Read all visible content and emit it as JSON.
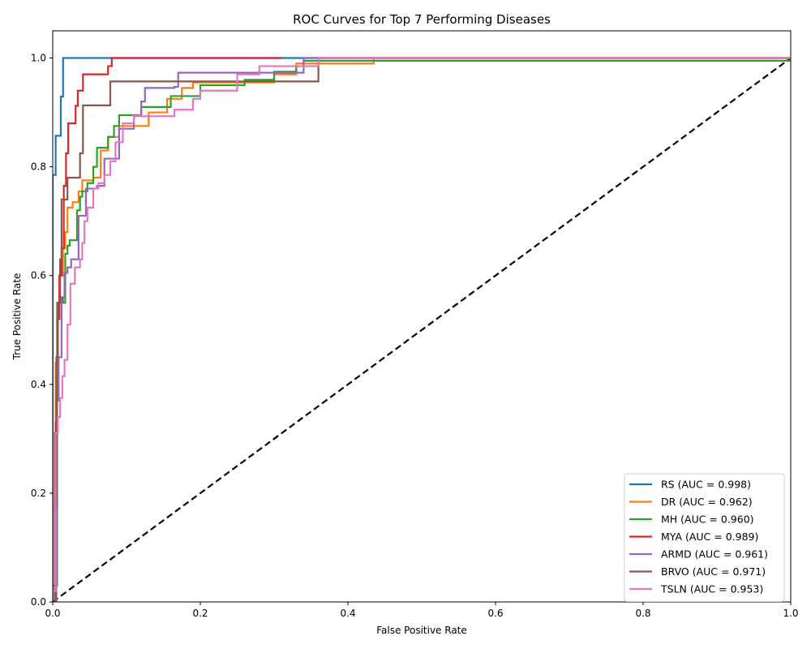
{
  "chart_data": {
    "type": "line",
    "title": "ROC Curves for Top 7 Performing Diseases",
    "xlabel": "False Positive Rate",
    "ylabel": "True Positive Rate",
    "xlim": [
      0,
      1
    ],
    "ylim": [
      0,
      1.05
    ],
    "xticks": [
      "0.0",
      "0.2",
      "0.4",
      "0.6",
      "0.8",
      "1.0"
    ],
    "yticks": [
      "0.0",
      "0.2",
      "0.4",
      "0.6",
      "0.8",
      "1.0"
    ],
    "grid": false,
    "legend_position": "lower-right",
    "baseline": {
      "x": [
        0,
        1
      ],
      "y": [
        0,
        1
      ],
      "color": "#000000",
      "style": "dashed"
    },
    "series": [
      {
        "name": "RS (AUC = 0.998)",
        "color": "#1f77b4",
        "x": [
          0,
          0,
          0.004,
          0.004,
          0.011,
          0.011,
          0.014,
          0.014,
          1
        ],
        "y": [
          0,
          0.785,
          0.785,
          0.857,
          0.857,
          0.929,
          0.929,
          1.0,
          1.0
        ]
      },
      {
        "name": "DR (AUC = 0.962)",
        "color": "#ff7f0e",
        "x": [
          0,
          0.004,
          0.006,
          0.009,
          0.014,
          0.017,
          0.02,
          0.027,
          0.035,
          0.04,
          0.055,
          0.065,
          0.075,
          0.09,
          0.13,
          0.155,
          0.175,
          0.19,
          0.26,
          0.3,
          0.33,
          0.435,
          0.435,
          1
        ],
        "y": [
          0,
          0.44,
          0.52,
          0.6,
          0.65,
          0.68,
          0.725,
          0.735,
          0.755,
          0.775,
          0.78,
          0.83,
          0.855,
          0.875,
          0.9,
          0.925,
          0.945,
          0.955,
          0.955,
          0.97,
          0.99,
          0.99,
          1.0,
          1.0
        ]
      },
      {
        "name": "MH (AUC = 0.960)",
        "color": "#2ca02c",
        "x": [
          0,
          0.006,
          0.009,
          0.014,
          0.017,
          0.02,
          0.023,
          0.033,
          0.037,
          0.04,
          0.047,
          0.055,
          0.06,
          0.075,
          0.083,
          0.09,
          0.12,
          0.16,
          0.2,
          0.26,
          0.3,
          0.33,
          0.34,
          1
        ],
        "y": [
          0.03,
          0.55,
          0.56,
          0.55,
          0.64,
          0.655,
          0.665,
          0.72,
          0.745,
          0.755,
          0.77,
          0.8,
          0.835,
          0.855,
          0.875,
          0.895,
          0.91,
          0.93,
          0.95,
          0.96,
          0.975,
          0.985,
          0.995,
          1.0
        ]
      },
      {
        "name": "MYA (AUC = 0.989)",
        "color": "#d62728",
        "x": [
          0,
          0.003,
          0.004,
          0.005,
          0.007,
          0.009,
          0.012,
          0.015,
          0.018,
          0.021,
          0.031,
          0.034,
          0.041,
          0.048,
          0.075,
          0.08,
          0.31
        ],
        "y": [
          0,
          0.31,
          0.33,
          0.44,
          0.52,
          0.6,
          0.65,
          0.765,
          0.825,
          0.88,
          0.912,
          0.94,
          0.97,
          0.97,
          0.985,
          1.0,
          1.0
        ]
      },
      {
        "name": "ARMD (AUC = 0.961)",
        "color": "#9467bd",
        "x": [
          0,
          0.005,
          0.008,
          0.012,
          0.016,
          0.02,
          0.025,
          0.035,
          0.045,
          0.06,
          0.07,
          0.09,
          0.11,
          0.12,
          0.125,
          0.165,
          0.17,
          0.29,
          0.33,
          0.34,
          1
        ],
        "y": [
          0,
          0.37,
          0.45,
          0.56,
          0.605,
          0.615,
          0.63,
          0.71,
          0.76,
          0.765,
          0.815,
          0.87,
          0.895,
          0.92,
          0.945,
          0.947,
          0.973,
          0.973,
          0.973,
          1.0,
          1.0
        ]
      },
      {
        "name": "BRVO (AUC = 0.971)",
        "color": "#8c564b",
        "x": [
          0,
          0.004,
          0.005,
          0.007,
          0.01,
          0.012,
          0.02,
          0.033,
          0.037,
          0.041,
          0.075,
          0.078,
          0.36,
          0.36,
          1
        ],
        "y": [
          0,
          0.175,
          0.45,
          0.55,
          0.63,
          0.74,
          0.78,
          0.78,
          0.825,
          0.913,
          0.913,
          0.957,
          0.957,
          1.0,
          1.0
        ]
      },
      {
        "name": "TSLN (AUC = 0.953)",
        "color": "#e377c2",
        "x": [
          0,
          0.004,
          0.007,
          0.01,
          0.013,
          0.016,
          0.02,
          0.024,
          0.03,
          0.037,
          0.04,
          0.043,
          0.047,
          0.055,
          0.062,
          0.07,
          0.078,
          0.085,
          0.095,
          0.11,
          0.16,
          0.165,
          0.18,
          0.19,
          0.2,
          0.25,
          0.28,
          0.31,
          0.36,
          1
        ],
        "y": [
          0.02,
          0.31,
          0.34,
          0.375,
          0.415,
          0.445,
          0.51,
          0.585,
          0.615,
          0.63,
          0.66,
          0.7,
          0.725,
          0.76,
          0.77,
          0.785,
          0.81,
          0.845,
          0.88,
          0.893,
          0.893,
          0.905,
          0.905,
          0.925,
          0.94,
          0.97,
          0.985,
          0.985,
          1.0,
          1.0
        ]
      }
    ]
  }
}
